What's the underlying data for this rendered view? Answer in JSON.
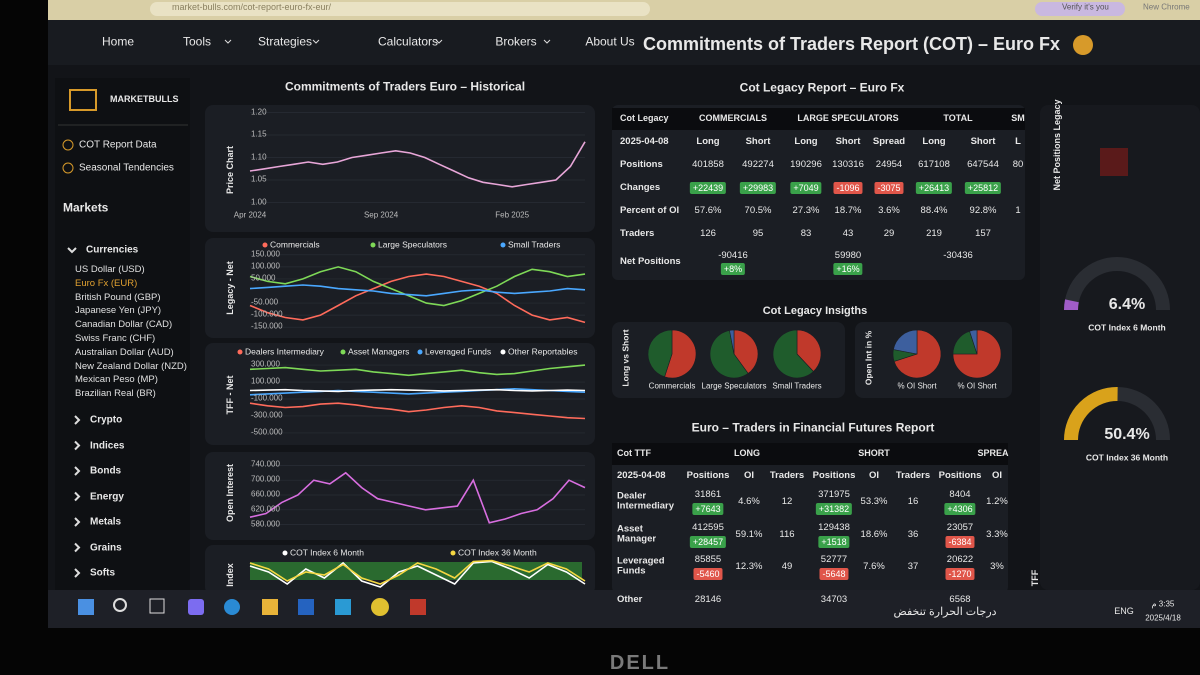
{
  "browser": {
    "url": "market-bulls.com/cot-report-euro-fx-eur/",
    "profile": "Verify it's you",
    "tab": "New Chrome"
  },
  "nav": {
    "items": [
      "Home",
      "Tools",
      "Strategies",
      "Calculators",
      "Brokers",
      "About Us"
    ],
    "title": "Commitments of Traders Report (COT) – Euro Fx"
  },
  "sidebar": {
    "brand": "MARKETBULLS",
    "links": [
      "COT Report Data",
      "Seasonal Tendencies"
    ],
    "markets_title": "Markets",
    "group": "Currencies",
    "currencies": [
      "US Dollar (USD)",
      "Euro Fx (EUR)",
      "British Pound (GBP)",
      "Japanese Yen (JPY)",
      "Canadian Dollar (CAD)",
      "Swiss Franc (CHF)",
      "Australian Dollar (AUD)",
      "New Zealand Dollar (NZD)",
      "Mexican Peso (MP)",
      "Brazilian Real (BR)"
    ],
    "selected": 1,
    "categories": [
      "Crypto",
      "Indices",
      "Bonds",
      "Energy",
      "Metals",
      "Grains",
      "Softs"
    ]
  },
  "historical": {
    "title": "Commitments of Traders Euro – Historical",
    "charts": [
      {
        "type": "line",
        "ylabel": "Price Chart",
        "color": "#e8a6d8",
        "categories": [
          "Apr 2024",
          null,
          null,
          null,
          null,
          null,
          null,
          null,
          null,
          "Sep 2024",
          null,
          null,
          null,
          null,
          null,
          null,
          null,
          null,
          "Feb 2025",
          null,
          null,
          null,
          null,
          null
        ],
        "values": [
          1.07,
          1.075,
          1.08,
          1.085,
          1.09,
          1.085,
          1.09,
          1.1,
          1.105,
          1.11,
          1.115,
          1.11,
          1.1,
          1.085,
          1.07,
          1.055,
          1.045,
          1.04,
          1.035,
          1.04,
          1.045,
          1.05,
          1.08,
          1.135
        ],
        "ylim": [
          0.99,
          1.21
        ],
        "yticks": [
          {
            "value": 1.2,
            "label": "1.20"
          },
          1.15,
          {
            "value": 1.1,
            "label": "1.10"
          },
          1.05,
          {
            "value": 1,
            "label": "1.00"
          }
        ]
      },
      {
        "type": "line",
        "ylabel": "Legacy - Net",
        "ylim": [
          -170000,
          170000
        ],
        "yticks": [
          {
            "value": 150000,
            "label": "150.000"
          },
          {
            "value": 100000,
            "label": "100.000"
          },
          {
            "value": 50000,
            "label": "50.000"
          },
          {
            "value": -50000,
            "label": "-50.000"
          },
          {
            "value": -100000,
            "label": "-100.000"
          },
          {
            "value": -150000,
            "label": "-150.000"
          }
        ],
        "series": [
          {
            "name": "Commercials",
            "color": "#ff6b5b",
            "values": [
              -60000,
              -90000,
              -110000,
              -120000,
              -100000,
              -60000,
              -20000,
              10000,
              40000,
              60000,
              70000,
              60000,
              40000,
              20000,
              -10000,
              -60000,
              -100000,
              -120000,
              -110000,
              -130000
            ]
          },
          {
            "name": "Large Speculators",
            "color": "#7ed957",
            "values": [
              60000,
              40000,
              30000,
              50000,
              80000,
              100000,
              80000,
              40000,
              10000,
              -20000,
              -50000,
              -60000,
              -40000,
              -10000,
              20000,
              60000,
              90000,
              80000,
              60000,
              70000
            ]
          },
          {
            "name": "Small Traders",
            "color": "#4aa8ff",
            "values": [
              10000,
              15000,
              20000,
              25000,
              20000,
              10000,
              5000,
              0,
              -10000,
              -15000,
              -20000,
              -10000,
              0,
              5000,
              -5000,
              -10000,
              -5000,
              0,
              10000,
              5000
            ]
          }
        ]
      },
      {
        "type": "line",
        "ylabel": "TFF - Net",
        "ylim": [
          -560000,
          360000
        ],
        "yticks": [
          {
            "value": 300000,
            "label": "300.000"
          },
          {
            "value": 100000,
            "label": "100.000"
          },
          {
            "value": -100000,
            "label": "-100.000"
          },
          {
            "value": -300000,
            "label": "-300.000"
          },
          {
            "value": -500000,
            "label": "-500.000"
          }
        ],
        "series": [
          {
            "name": "Dealers Intermediary",
            "color": "#ff6b5b",
            "values": [
              -150000,
              -180000,
              -200000,
              -190000,
              -160000,
              -150000,
              -170000,
              -200000,
              -220000,
              -250000,
              -230000,
              -200000,
              -180000,
              -200000,
              -240000,
              -260000,
              -280000,
              -300000,
              -320000,
              -330000
            ]
          },
          {
            "name": "Asset Managers",
            "color": "#7ed957",
            "values": [
              250000,
              260000,
              270000,
              250000,
              230000,
              240000,
              250000,
              220000,
              200000,
              180000,
              200000,
              220000,
              240000,
              210000,
              190000,
              200000,
              230000,
              260000,
              280000,
              300000
            ]
          },
          {
            "name": "Leveraged Funds",
            "color": "#4aa8ff",
            "values": [
              -50000,
              -40000,
              -30000,
              -20000,
              -10000,
              0,
              -10000,
              -20000,
              -30000,
              -40000,
              -30000,
              -20000,
              -10000,
              0,
              10000,
              20000,
              10000,
              0,
              -10000,
              -20000
            ]
          },
          {
            "name": "Other Reportables",
            "color": "#ffffff",
            "values": [
              0,
              5000,
              10000,
              0,
              -5000,
              -10000,
              0,
              5000,
              10000,
              5000,
              0,
              -5000,
              0,
              5000,
              10000,
              0,
              -5000,
              0,
              5000,
              0
            ]
          }
        ]
      },
      {
        "type": "line",
        "ylabel": "Open Interest",
        "color": "#d86ee0",
        "ylim": [
          560000,
          760000
        ],
        "yticks": [
          {
            "value": 740000,
            "label": "740.000"
          },
          {
            "value": 700000,
            "label": "700.000"
          },
          {
            "value": 660000,
            "label": "660.000"
          },
          {
            "value": 620000,
            "label": "620.000"
          },
          {
            "value": 580000,
            "label": "580.000"
          }
        ],
        "values": [
          600000,
          610000,
          640000,
          660000,
          700000,
          690000,
          720000,
          680000,
          650000,
          640000,
          630000,
          620000,
          625000,
          630000,
          700000,
          585000,
          595000,
          610000,
          620000,
          650000,
          700000,
          680000
        ]
      },
      {
        "type": "line",
        "ylabel": "Index",
        "ylim": [
          0,
          100
        ],
        "series": [
          {
            "name": "COT Index 6 Month",
            "color": "#ffffff",
            "values": [
              80,
              60,
              20,
              70,
              40,
              90,
              30,
              10,
              60,
              80,
              50,
              20,
              90,
              95,
              70,
              40,
              85,
              60,
              20
            ]
          },
          {
            "name": "COT Index 36 Month",
            "color": "#f5d742",
            "values": [
              90,
              70,
              30,
              60,
              50,
              85,
              40,
              20,
              50,
              90,
              70,
              40,
              95,
              98,
              80,
              60,
              90,
              70,
              30
            ]
          }
        ]
      }
    ]
  },
  "legacy_table": {
    "title": "Cot Legacy Report – Euro Fx",
    "header": [
      "Cot Legacy",
      "COMMERCIALS",
      "LARGE SPECULATORS",
      "TOTAL",
      "SM"
    ],
    "subheader": [
      "2025-04-08",
      "Long",
      "Short",
      "Long",
      "Short",
      "Spread",
      "Long",
      "Short",
      "L"
    ],
    "rows": [
      [
        "Positions",
        "401858",
        "492274",
        "190296",
        "130316",
        "24954",
        "617108",
        "647544",
        "80"
      ],
      [
        "Changes",
        "+22439",
        "+29983",
        "+7049",
        "-1096",
        "-3075",
        "+26413",
        "+25812"
      ],
      [
        "Percent of OI",
        "57.6%",
        "70.5%",
        "27.3%",
        "18.7%",
        "3.6%",
        "88.4%",
        "92.8%",
        "1"
      ],
      [
        "Traders",
        "126",
        "95",
        "83",
        "43",
        "29",
        "219",
        "157"
      ]
    ],
    "net": {
      "label": "Net Positions",
      "values": [
        [
          "-90416",
          "+8%"
        ],
        [
          "59980",
          "+16%"
        ],
        [
          "-30436"
        ]
      ]
    }
  },
  "insights": {
    "title": "Cot Legacy Insigths",
    "left_label": "Long vs Short",
    "right_label": "Open Int in %",
    "colors": [
      "#c0392b",
      "#1f5c2c",
      "#3d5f9e"
    ],
    "pies": [
      {
        "type": "pie",
        "label": "Commercials",
        "values": [
          55,
          45
        ]
      },
      {
        "type": "pie",
        "label": "Large Speculators",
        "values": [
          40,
          57,
          3
        ]
      },
      {
        "type": "pie",
        "label": "Small Traders",
        "values": [
          38,
          62
        ]
      },
      {
        "type": "pie",
        "label": "% OI Short",
        "values": [
          70,
          8,
          22
        ]
      },
      {
        "type": "pie",
        "label": "% OI Short",
        "values": [
          75,
          20,
          5
        ]
      }
    ]
  },
  "tff_table": {
    "title": "Euro – Traders in Financial Futures Report",
    "header": [
      "Cot TTF",
      "LONG",
      "SHORT",
      "SPREA"
    ],
    "subheader": [
      "2025-04-08",
      "Positions",
      "OI",
      "Traders",
      "Positions",
      "OI",
      "Traders",
      "Positions",
      "OI"
    ],
    "rows": [
      [
        "Dealer Intermediary",
        [
          "31861",
          "+7643"
        ],
        "4.6%",
        "12",
        [
          "371975",
          "+31382"
        ],
        "53.3%",
        "16",
        [
          "8404",
          "+4306"
        ],
        "1.2%"
      ],
      [
        "Asset Manager",
        [
          "412595",
          "+28457"
        ],
        "59.1%",
        "116",
        [
          "129438",
          "+1518"
        ],
        "18.6%",
        "36",
        [
          "23057",
          "-6384"
        ],
        "3.3%"
      ],
      [
        "Leveraged Funds",
        [
          "85855",
          "-5460"
        ],
        "12.3%",
        "49",
        [
          "52777",
          "-5648"
        ],
        "7.6%",
        "37",
        [
          "20622",
          "-1270"
        ],
        "3%"
      ],
      [
        "Other",
        [
          "28146"
        ],
        "",
        "",
        [
          "34703"
        ],
        "",
        "",
        [
          "6568"
        ],
        ""
      ]
    ]
  },
  "right": {
    "title": "Net Positions Legacy",
    "gauges": [
      {
        "type": "gauge",
        "value": 6.4,
        "value_label": "6.4%",
        "label": "COT Index 6 Month",
        "color": "#a05cc8",
        "ylim": [
          0,
          100
        ]
      },
      {
        "type": "gauge",
        "value": 50.4,
        "value_label": "50.4%",
        "label": "COT Index 36 Month",
        "color": "#d9a21b",
        "ylim": [
          0,
          100
        ]
      }
    ],
    "footer": "TFF"
  },
  "taskbar": {
    "weather": "درجات الحرارة تنخفض",
    "lang": "ENG",
    "time": "3:35 م",
    "date": "2025/4/18"
  },
  "bezel": {
    "brand": "DELL"
  }
}
